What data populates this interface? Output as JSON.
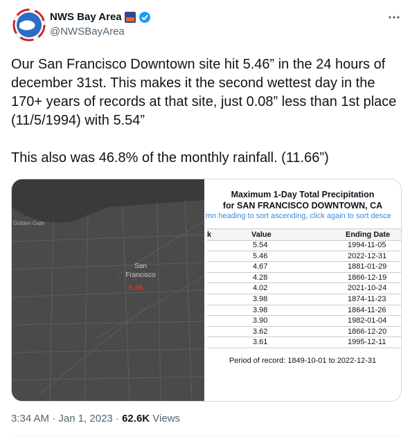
{
  "author": {
    "name": "NWS Bay Area",
    "handle": "@NWSBayArea"
  },
  "tweet": {
    "paragraphs": [
      "Our San Francisco Downtown site hit 5.46” in the 24 hours of december 31st. This makes it the second wettest day in the 170+ years of records at that site, just 0.08” less than 1st place (11/5/1994) with 5.54”",
      "This also was 46.8% of the monthly rainfall. (11.66”)"
    ]
  },
  "map": {
    "labels": [
      "Golden Gate",
      "San",
      "Francisco"
    ],
    "value": "5.46"
  },
  "table": {
    "title": "Maximum 1-Day Total Precipitation",
    "subtitle": "for SAN FRANCISCO DOWNTOWN, CA",
    "hint": "mn heading to sort ascending, click again to sort desce",
    "header": [
      "k",
      "Value",
      "Ending Date"
    ],
    "rows": [
      [
        "5.54",
        "1994-11-05"
      ],
      [
        "5.46",
        "2022-12-31"
      ],
      [
        "4.67",
        "1881-01-29"
      ],
      [
        "4.28",
        "1866-12-19"
      ],
      [
        "4.02",
        "2021-10-24"
      ],
      [
        "3.98",
        "1874-11-23"
      ],
      [
        "3.98",
        "1864-11-26"
      ],
      [
        "3.90",
        "1982-01-04"
      ],
      [
        "3.62",
        "1866-12-20"
      ],
      [
        "3.61",
        "1995-12-11"
      ]
    ],
    "footer": "Period of record: 1849-10-01 to 2022-12-31"
  },
  "meta": {
    "timestamp": "3:34 AM · Jan 1, 2023 · ",
    "views": "62.6K",
    "views_label": "Views"
  }
}
